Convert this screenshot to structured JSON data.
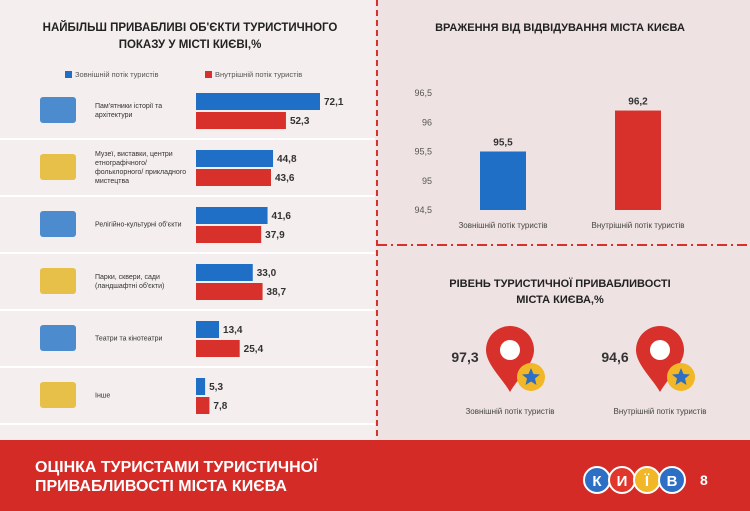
{
  "chart_data": [
    {
      "type": "hbar",
      "title": "НАЙБІЛЬШ ПРИВАБЛИВІ ОБ'ЄКТИ ТУРИСТИЧНОГО ПОКАЗУ У МІСТІ КИЄВІ,%",
      "categories": [
        "Пам'ятники історії та архітектури",
        "Музеї, виставки, центри етнографічного/ фольклорного/ прикладного мистецтва",
        "Релігійно-культурні об'єкти",
        "Парки, сквери, сади (ландшафтні об'єкти)",
        "Театри та кінотеатри",
        "Інше"
      ],
      "series": [
        {
          "name": "Зовнішній потік туристів",
          "color": "#1f6fc6",
          "values": [
            72.1,
            44.8,
            41.6,
            33.0,
            13.4,
            5.3
          ],
          "value_labels": [
            "72,1",
            "44,8",
            "41,6",
            "33,0",
            "13,4",
            "5,3"
          ]
        },
        {
          "name": "Внутрішній потік туристів",
          "color": "#d8302a",
          "values": [
            52.3,
            43.6,
            37.9,
            38.7,
            25.4,
            7.8
          ],
          "value_labels": [
            "52,3",
            "43,6",
            "37,9",
            "38,7",
            "25,4",
            "7,8"
          ]
        }
      ]
    },
    {
      "type": "bar",
      "title": "ВРАЖЕННЯ ВІД ВІДВІДУВАННЯ МІСТА КИЄВА",
      "categories": [
        "Зовнішній потік туристів",
        "Внутрішній потік туристів"
      ],
      "values": [
        95.5,
        96.2
      ],
      "value_labels": [
        "95,5",
        "96,2"
      ],
      "colors": [
        "#1f6fc6",
        "#d8302a"
      ],
      "ylim": [
        94.5,
        96.5
      ],
      "yticks": [
        {
          "value": 94.5,
          "label": "94,5"
        },
        95,
        {
          "value": 95.5,
          "label": "95,5"
        },
        96,
        {
          "value": 96.5,
          "label": "96,5"
        }
      ]
    },
    {
      "type": "pin",
      "title": "РІВЕНЬ ТУРИСТИЧНОЇ ПРИВАБЛИВОСТІ МІСТА КИЄВА,%",
      "categories": [
        "Зовнішній потік туристів",
        "Внутрішній потік туристів"
      ],
      "values": [
        97.3,
        94.6
      ],
      "value_labels": [
        "97,3",
        "94,6"
      ]
    }
  ],
  "footer": {
    "title": "ОЦІНКА ТУРИСТАМИ ТУРИСТИЧНОЇ ПРИВАБЛИВОСТІ МІСТА КИЄВА",
    "logo": [
      "К",
      "И",
      "Ї",
      "В"
    ],
    "page": "8"
  }
}
